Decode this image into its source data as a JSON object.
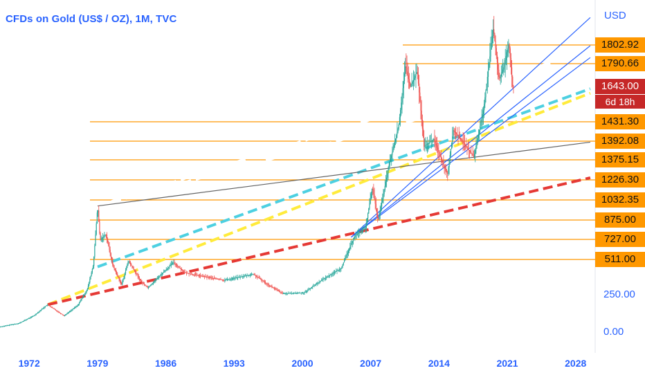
{
  "title": {
    "ticker": "CFDs on Gold (US$ / OZ)",
    "interval": "1M",
    "source": "TVC"
  },
  "currency": "USD",
  "colors": {
    "accent": "#2962ff",
    "up_candle": "#26a69a",
    "down_candle": "#ef5350",
    "tag": "#ff9800",
    "current_tag": "#c62828",
    "level_line": "#ff9800",
    "trend_white": "#ffffff",
    "trend_cyan": "#4dd0e1",
    "trend_yellow": "#ffeb3b",
    "trend_red": "#e53935",
    "trend_blue": "#2962ff",
    "trend_gray": "#616161"
  },
  "chart_data": {
    "type": "candlestick",
    "x_axis": {
      "range": [
        1970,
        2031
      ],
      "ticks": [
        "1972",
        "1979",
        "1986",
        "1993",
        "2000",
        "2007",
        "2014",
        "2021",
        "2028"
      ]
    },
    "y_axis": {
      "unit": "USD",
      "labeled_ticks": [
        "250.00",
        "0.00"
      ]
    },
    "current_price": {
      "value": "1643.00",
      "countdown": "6d 18h"
    },
    "price_levels": [
      "1802.92",
      "1790.66",
      "1431.30",
      "1392.08",
      "1375.15",
      "1226.30",
      "1032.35",
      "875.00",
      "727.00",
      "511.00"
    ],
    "price_path": [
      [
        1970.0,
        35
      ],
      [
        1972.0,
        60
      ],
      [
        1973.5,
        110
      ],
      [
        1974.9,
        185
      ],
      [
        1976.6,
        110
      ],
      [
        1978.0,
        180
      ],
      [
        1979.0,
        290
      ],
      [
        1979.6,
        450
      ],
      [
        1980.05,
        850
      ],
      [
        1980.3,
        620
      ],
      [
        1980.9,
        660
      ],
      [
        1981.6,
        450
      ],
      [
        1982.5,
        320
      ],
      [
        1983.2,
        480
      ],
      [
        1984.5,
        340
      ],
      [
        1985.2,
        300
      ],
      [
        1987.8,
        470
      ],
      [
        1989.0,
        400
      ],
      [
        1990.5,
        380
      ],
      [
        1993.0,
        350
      ],
      [
        1996.0,
        390
      ],
      [
        1997.5,
        320
      ],
      [
        1999.0,
        260
      ],
      [
        2001.2,
        265
      ],
      [
        2003.0,
        350
      ],
      [
        2005.0,
        430
      ],
      [
        2006.4,
        650
      ],
      [
        2007.5,
        700
      ],
      [
        2008.2,
        980
      ],
      [
        2008.8,
        750
      ],
      [
        2009.9,
        1120
      ],
      [
        2010.9,
        1390
      ],
      [
        2011.6,
        1800
      ],
      [
        2012.1,
        1650
      ],
      [
        2012.8,
        1760
      ],
      [
        2013.5,
        1250
      ],
      [
        2014.5,
        1300
      ],
      [
        2015.9,
        1060
      ],
      [
        2016.5,
        1360
      ],
      [
        2017.5,
        1280
      ],
      [
        2018.6,
        1180
      ],
      [
        2019.6,
        1500
      ],
      [
        2020.6,
        2050
      ],
      [
        2021.2,
        1700
      ],
      [
        2021.7,
        1790
      ],
      [
        2022.2,
        1950
      ],
      [
        2022.6,
        1643
      ]
    ],
    "trend_lines": [
      {
        "style": "dashed",
        "color": "white",
        "from": [
          1980.0,
          850
        ],
        "to": [
          2030.5,
          1900
        ]
      },
      {
        "style": "dashed",
        "color": "white",
        "from": [
          1980.0,
          850
        ],
        "to": [
          2030.5,
          1750
        ]
      },
      {
        "style": "dashed",
        "color": "cyan",
        "from": [
          1980.0,
          440
        ],
        "to": [
          2030.5,
          1640
        ]
      },
      {
        "style": "dashed",
        "color": "yellow",
        "from": [
          1974.9,
          185
        ],
        "to": [
          2030.5,
          1610
        ]
      },
      {
        "style": "dashed",
        "color": "red",
        "from": [
          1974.9,
          185
        ],
        "to": [
          2030.5,
          1040
        ]
      },
      {
        "style": "solid",
        "color": "gray",
        "from": [
          1980.0,
          850
        ],
        "to": [
          2030.5,
          1280
        ]
      },
      {
        "style": "solid",
        "color": "blue",
        "from": [
          2006.0,
          640
        ],
        "to": [
          2030.5,
          2120
        ]
      },
      {
        "style": "solid",
        "color": "blue",
        "from": [
          2006.0,
          640
        ],
        "to": [
          2030.5,
          1930
        ]
      },
      {
        "style": "solid",
        "color": "blue",
        "from": [
          2006.0,
          640
        ],
        "to": [
          2030.5,
          1850
        ]
      }
    ]
  }
}
